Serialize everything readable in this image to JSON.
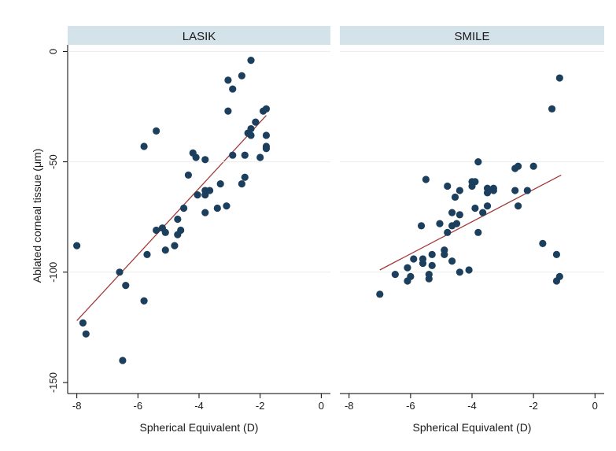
{
  "chart_data": {
    "type": "scatter",
    "ylabel": "Ablated corneal tissue (μm)",
    "ylim": [
      -155,
      3
    ],
    "yticks": [
      0,
      -50,
      -100,
      -150
    ],
    "xticks": [
      -8,
      -6,
      -4,
      -2,
      0
    ],
    "colors": {
      "point": "#1d3f5e",
      "fit_line": "#a33a3a",
      "strip": "#d4e2ea",
      "background": "#ffffff",
      "axis": "#000000"
    },
    "panels": [
      {
        "title": "LASIK",
        "xlabel": "Spherical Equivalent (D)",
        "xlim": [
          -8.3,
          0.3
        ],
        "fit": {
          "x1": -8.0,
          "y1": -122,
          "x2": -1.8,
          "y2": -29
        },
        "points": [
          [
            -8.0,
            -88
          ],
          [
            -7.8,
            -123
          ],
          [
            -7.7,
            -128
          ],
          [
            -6.6,
            -100
          ],
          [
            -6.5,
            -140
          ],
          [
            -6.4,
            -106
          ],
          [
            -5.8,
            -43
          ],
          [
            -5.8,
            -113
          ],
          [
            -5.7,
            -92
          ],
          [
            -5.4,
            -36
          ],
          [
            -5.4,
            -81
          ],
          [
            -5.2,
            -80
          ],
          [
            -5.1,
            -82
          ],
          [
            -5.1,
            -90
          ],
          [
            -4.8,
            -88
          ],
          [
            -4.7,
            -76
          ],
          [
            -4.7,
            -83
          ],
          [
            -4.6,
            -81
          ],
          [
            -4.5,
            -71
          ],
          [
            -4.35,
            -56
          ],
          [
            -4.2,
            -46
          ],
          [
            -4.1,
            -48
          ],
          [
            -4.05,
            -65
          ],
          [
            -3.8,
            -49
          ],
          [
            -3.8,
            -63
          ],
          [
            -3.8,
            -65
          ],
          [
            -3.8,
            -73
          ],
          [
            -3.65,
            -63
          ],
          [
            -3.4,
            -71
          ],
          [
            -3.3,
            -60
          ],
          [
            -3.1,
            -70
          ],
          [
            -3.05,
            -13
          ],
          [
            -3.05,
            -27
          ],
          [
            -2.9,
            -17
          ],
          [
            -2.9,
            -47
          ],
          [
            -2.6,
            -11
          ],
          [
            -2.6,
            -60
          ],
          [
            -2.5,
            -47
          ],
          [
            -2.5,
            -57
          ],
          [
            -2.4,
            -37
          ],
          [
            -2.3,
            -4
          ],
          [
            -2.3,
            -35
          ],
          [
            -2.3,
            -38
          ],
          [
            -2.15,
            -32
          ],
          [
            -2.0,
            -48
          ],
          [
            -1.9,
            -27
          ],
          [
            -1.8,
            -26
          ],
          [
            -1.8,
            -38
          ],
          [
            -1.8,
            -43
          ],
          [
            -1.8,
            -44
          ]
        ]
      },
      {
        "title": "SMILE",
        "xlabel": "Spherical Equivalent (D)",
        "xlim": [
          -8.3,
          0.3
        ],
        "fit": {
          "x1": -7.0,
          "y1": -99,
          "x2": -1.1,
          "y2": -56
        },
        "points": [
          [
            -7.0,
            -110
          ],
          [
            -6.5,
            -101
          ],
          [
            -6.1,
            -98
          ],
          [
            -6.1,
            -104
          ],
          [
            -6.0,
            -102
          ],
          [
            -5.9,
            -94
          ],
          [
            -5.65,
            -79
          ],
          [
            -5.6,
            -94
          ],
          [
            -5.6,
            -96
          ],
          [
            -5.5,
            -58
          ],
          [
            -5.4,
            -101
          ],
          [
            -5.4,
            -103
          ],
          [
            -5.3,
            -92
          ],
          [
            -5.3,
            -97
          ],
          [
            -5.05,
            -78
          ],
          [
            -4.9,
            -90
          ],
          [
            -4.9,
            -92
          ],
          [
            -4.8,
            -61
          ],
          [
            -4.8,
            -82
          ],
          [
            -4.65,
            -73
          ],
          [
            -4.65,
            -79
          ],
          [
            -4.65,
            -95
          ],
          [
            -4.55,
            -66
          ],
          [
            -4.5,
            -78
          ],
          [
            -4.4,
            -63
          ],
          [
            -4.4,
            -74
          ],
          [
            -4.4,
            -100
          ],
          [
            -4.1,
            -99
          ],
          [
            -4.0,
            -59
          ],
          [
            -4.0,
            -61
          ],
          [
            -3.9,
            -59
          ],
          [
            -3.9,
            -71
          ],
          [
            -3.8,
            -50
          ],
          [
            -3.8,
            -82
          ],
          [
            -3.65,
            -73
          ],
          [
            -3.5,
            -62
          ],
          [
            -3.5,
            -64
          ],
          [
            -3.5,
            -70
          ],
          [
            -3.3,
            -62
          ],
          [
            -3.3,
            -63
          ],
          [
            -2.6,
            -53
          ],
          [
            -2.6,
            -63
          ],
          [
            -2.5,
            -52
          ],
          [
            -2.5,
            -70
          ],
          [
            -2.2,
            -63
          ],
          [
            -2.0,
            -52
          ],
          [
            -1.7,
            -87
          ],
          [
            -1.4,
            -26
          ],
          [
            -1.25,
            -92
          ],
          [
            -1.25,
            -104
          ],
          [
            -1.15,
            -12
          ],
          [
            -1.15,
            -102
          ]
        ]
      }
    ]
  }
}
